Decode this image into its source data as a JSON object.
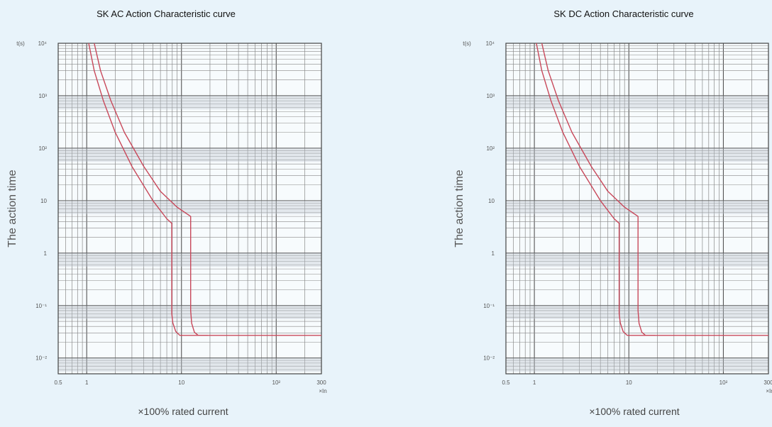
{
  "chart_data": [
    {
      "type": "line",
      "title": "SK AC Action Characteristic curve",
      "ylabel": "The action time",
      "yunit": "t(s)",
      "xlabel": "×100%  rated current",
      "xunit": "×In",
      "x_scale": "log",
      "y_scale": "log",
      "xlim": [
        0.5,
        300
      ],
      "ylim": [
        0.005,
        10000
      ],
      "grid": true,
      "x_ticks": [
        {
          "value": 0.5,
          "label": "0.5"
        },
        {
          "value": 1,
          "label": "1"
        },
        {
          "value": 10,
          "label": "10"
        },
        {
          "value": 100,
          "label": "10²"
        },
        {
          "value": 300,
          "label": "300"
        }
      ],
      "y_ticks": [
        {
          "value": 10000,
          "label": "10⁴"
        },
        {
          "value": 1000,
          "label": "10³"
        },
        {
          "value": 100,
          "label": "10²"
        },
        {
          "value": 10,
          "label": "10"
        },
        {
          "value": 1,
          "label": "1"
        },
        {
          "value": 0.1,
          "label": "10⁻¹"
        },
        {
          "value": 0.01,
          "label": "10⁻²"
        }
      ],
      "series": [
        {
          "color": "#c8485a",
          "x": [
            1.05,
            1.2,
            1.5,
            2.0,
            3.0,
            5.0,
            7.0,
            7.9,
            7.9,
            8.1,
            8.7,
            9.6,
            300
          ],
          "y": [
            10000,
            3000,
            800,
            200,
            45,
            10,
            4.5,
            3.7,
            0.07,
            0.047,
            0.032,
            0.027,
            0.027
          ]
        },
        {
          "color": "#c8485a",
          "x": [
            1.2,
            1.4,
            1.8,
            2.5,
            4.0,
            6.0,
            9.0,
            12.5,
            12.5,
            12.8,
            13.7,
            15.0,
            19.0
          ],
          "y": [
            10000,
            3000,
            800,
            200,
            45,
            15,
            7.5,
            5.0,
            0.08,
            0.046,
            0.031,
            0.027,
            0.027
          ]
        }
      ]
    },
    {
      "type": "line",
      "title": "SK DC Action Characteristic curve",
      "ylabel": "The action time",
      "yunit": "t(s)",
      "xlabel": "×100%  rated current",
      "xunit": "×In",
      "x_scale": "log",
      "y_scale": "log",
      "xlim": [
        0.5,
        300
      ],
      "ylim": [
        0.005,
        10000
      ],
      "grid": true,
      "x_ticks": [
        {
          "value": 0.5,
          "label": "0.5"
        },
        {
          "value": 1,
          "label": "1"
        },
        {
          "value": 10,
          "label": "10"
        },
        {
          "value": 100,
          "label": "10²"
        },
        {
          "value": 300,
          "label": "300"
        }
      ],
      "y_ticks": [
        {
          "value": 10000,
          "label": "10⁴"
        },
        {
          "value": 1000,
          "label": "10³"
        },
        {
          "value": 100,
          "label": "10²"
        },
        {
          "value": 10,
          "label": "10"
        },
        {
          "value": 1,
          "label": "1"
        },
        {
          "value": 0.1,
          "label": "10⁻¹"
        },
        {
          "value": 0.01,
          "label": "10⁻²"
        }
      ],
      "series": [
        {
          "color": "#c8485a",
          "x": [
            1.05,
            1.2,
            1.5,
            2.0,
            3.0,
            5.0,
            7.0,
            7.9,
            7.9,
            8.1,
            8.7,
            9.6,
            300
          ],
          "y": [
            10000,
            3000,
            800,
            200,
            45,
            10,
            4.5,
            3.7,
            0.07,
            0.047,
            0.032,
            0.027,
            0.027
          ]
        },
        {
          "color": "#c8485a",
          "x": [
            1.2,
            1.4,
            1.8,
            2.5,
            4.0,
            6.0,
            9.0,
            12.5,
            12.5,
            12.8,
            13.7,
            15.0,
            19.0
          ],
          "y": [
            10000,
            3000,
            800,
            200,
            45,
            15,
            7.5,
            5.0,
            0.08,
            0.046,
            0.031,
            0.027,
            0.027
          ]
        }
      ]
    }
  ]
}
